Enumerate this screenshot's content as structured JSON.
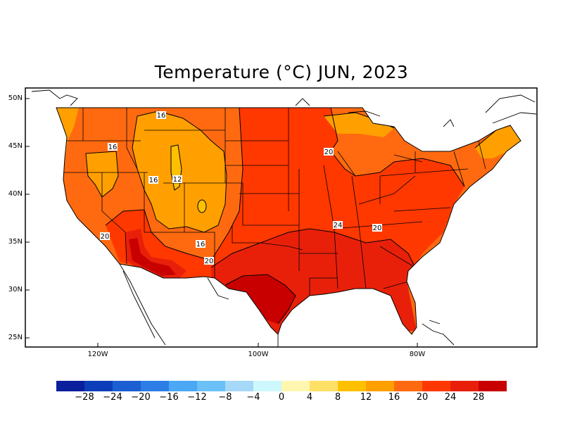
{
  "title": "Temperature (°C) JUN, 2023",
  "lat_labels": [
    "50N",
    "45N",
    "40N",
    "35N",
    "30N",
    "25N"
  ],
  "lon_labels": [
    "120W",
    "100W",
    "80W"
  ],
  "contour_labels": [
    "16",
    "16",
    "16",
    "12",
    "20",
    "16",
    "20",
    "20",
    "24",
    "20"
  ],
  "colorbar": {
    "colors": [
      "#0a1f9c",
      "#0d3db8",
      "#1c5fd3",
      "#2c7de6",
      "#4aa8f5",
      "#6bc1f7",
      "#a6d8f8",
      "#cdf8fd",
      "#fff7b0",
      "#ffe066",
      "#ffc000",
      "#ffa000",
      "#ff6a10",
      "#ff3800",
      "#e8200a",
      "#c80000"
    ],
    "labels": [
      "−28",
      "−24",
      "−20",
      "−16",
      "−12",
      "−8",
      "−4",
      "0",
      "4",
      "8",
      "12",
      "16",
      "20",
      "24",
      "28"
    ]
  },
  "region_colors": {
    "ocean": "#ffffff",
    "band_12": "#ffa000",
    "band_16": "#ff6a10",
    "band_20": "#ff3800",
    "band_24": "#e8200a",
    "band_28": "#c80000"
  }
}
